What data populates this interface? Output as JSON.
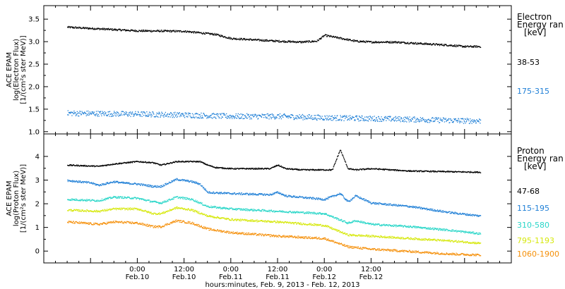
{
  "chart_data": [
    {
      "type": "scatter",
      "ylabel": [
        "ACE EPAM",
        "log(Electron Flux)",
        "[1/(cm²s ster MeV)]"
      ],
      "ylim": [
        0.95,
        3.8
      ],
      "yticks": [
        1.0,
        1.5,
        2.0,
        2.5,
        3.0,
        3.5
      ],
      "ytick_labels": [
        "1.0",
        "1.5",
        "2.0",
        "2.5",
        "3.0",
        "3.5"
      ],
      "legend": {
        "title_lines": [
          "Electron",
          "Energy ran",
          "[keV]"
        ],
        "placement": "right"
      },
      "series": [
        {
          "name": "38-53",
          "color": "#000000",
          "noise": 0.02,
          "x": [
            -18,
            0,
            12,
            20,
            24,
            30,
            36,
            42,
            46,
            48,
            56,
            60,
            66,
            72,
            76,
            80,
            84,
            88
          ],
          "y": [
            3.33,
            3.25,
            3.24,
            3.17,
            3.08,
            3.05,
            3.02,
            3.0,
            3.02,
            3.15,
            3.02,
            3.0,
            3.0,
            2.97,
            2.95,
            2.93,
            2.9,
            2.9
          ]
        },
        {
          "name": "175-315",
          "color": "#1f7fd6",
          "noise": 0.06,
          "x": [
            -18,
            0,
            12,
            24,
            36,
            48,
            60,
            72,
            84,
            88
          ],
          "y": [
            1.42,
            1.4,
            1.38,
            1.35,
            1.35,
            1.32,
            1.3,
            1.28,
            1.25,
            1.25
          ]
        }
      ]
    },
    {
      "type": "scatter",
      "ylabel": [
        "ACE EPAM",
        "log(Proton Flux)",
        "[1/(cm²s ster MeV)]"
      ],
      "ylim": [
        -0.5,
        4.95
      ],
      "yticks": [
        0,
        1,
        2,
        3,
        4
      ],
      "ytick_labels": [
        "0",
        "1",
        "2",
        "3",
        "4"
      ],
      "legend": {
        "title_lines": [
          "Proton",
          "Energy ran",
          "[keV]"
        ],
        "placement": "right"
      },
      "series": [
        {
          "name": "47-68",
          "color": "#000000",
          "noise": 0.025,
          "x": [
            -18,
            -10,
            -6,
            0,
            4,
            6,
            10,
            16,
            18,
            20,
            24,
            34,
            36,
            38,
            42,
            50,
            52,
            54,
            56,
            60,
            70,
            88
          ],
          "y": [
            3.65,
            3.6,
            3.7,
            3.8,
            3.75,
            3.65,
            3.8,
            3.8,
            3.65,
            3.55,
            3.5,
            3.5,
            3.65,
            3.5,
            3.45,
            3.45,
            4.3,
            3.5,
            3.45,
            3.5,
            3.4,
            3.35
          ]
        },
        {
          "name": "115-195",
          "color": "#1f7fd6",
          "noise": 0.04,
          "x": [
            -18,
            -12,
            -10,
            -6,
            -4,
            0,
            4,
            6,
            10,
            14,
            16,
            18,
            24,
            34,
            36,
            38,
            48,
            52,
            54,
            56,
            60,
            70,
            80,
            88
          ],
          "y": [
            3.0,
            2.9,
            2.8,
            2.95,
            2.9,
            2.85,
            2.75,
            2.75,
            3.05,
            2.95,
            2.85,
            2.5,
            2.45,
            2.4,
            2.5,
            2.35,
            2.2,
            2.45,
            2.1,
            2.35,
            2.05,
            1.9,
            1.65,
            1.5
          ]
        },
        {
          "name": "310-580",
          "color": "#29d6c8",
          "noise": 0.04,
          "x": [
            -18,
            -10,
            -6,
            0,
            4,
            6,
            10,
            14,
            18,
            24,
            36,
            48,
            54,
            56,
            60,
            70,
            80,
            88
          ],
          "y": [
            2.2,
            2.15,
            2.3,
            2.25,
            2.1,
            2.05,
            2.3,
            2.2,
            1.9,
            1.8,
            1.7,
            1.6,
            1.2,
            1.3,
            1.15,
            1.05,
            0.9,
            0.75
          ]
        },
        {
          "name": "795-1193",
          "color": "#d6e80c",
          "noise": 0.04,
          "x": [
            -18,
            -10,
            -6,
            0,
            4,
            6,
            10,
            14,
            18,
            24,
            36,
            48,
            54,
            60,
            70,
            80,
            88
          ],
          "y": [
            1.75,
            1.7,
            1.8,
            1.8,
            1.6,
            1.6,
            1.85,
            1.75,
            1.5,
            1.35,
            1.25,
            1.1,
            0.7,
            0.65,
            0.55,
            0.45,
            0.35
          ]
        },
        {
          "name": "1060-1900",
          "color": "#f5900a",
          "noise": 0.045,
          "x": [
            -18,
            -10,
            -6,
            0,
            4,
            6,
            10,
            14,
            18,
            24,
            36,
            48,
            54,
            60,
            70,
            80,
            88
          ],
          "y": [
            1.25,
            1.15,
            1.25,
            1.2,
            1.05,
            1.05,
            1.3,
            1.2,
            0.95,
            0.8,
            0.65,
            0.55,
            0.2,
            0.1,
            0.0,
            -0.1,
            -0.15
          ]
        }
      ]
    }
  ],
  "x_axis": {
    "range_hours": [
      -24,
      96
    ],
    "ticks": [
      {
        "h": 0,
        "time": "0:00",
        "date": "Feb.10"
      },
      {
        "h": 12,
        "time": "12:00",
        "date": "Feb.10"
      },
      {
        "h": 24,
        "time": "0:00",
        "date": "Feb.11"
      },
      {
        "h": 36,
        "time": "12:00",
        "date": "Feb.11"
      },
      {
        "h": 48,
        "time": "0:00",
        "date": "Feb.12"
      },
      {
        "h": 60,
        "time": "12:00",
        "date": "Feb.12"
      }
    ],
    "title": "hours:minutes, Feb.  9, 2013 - Feb. 12, 2013"
  }
}
